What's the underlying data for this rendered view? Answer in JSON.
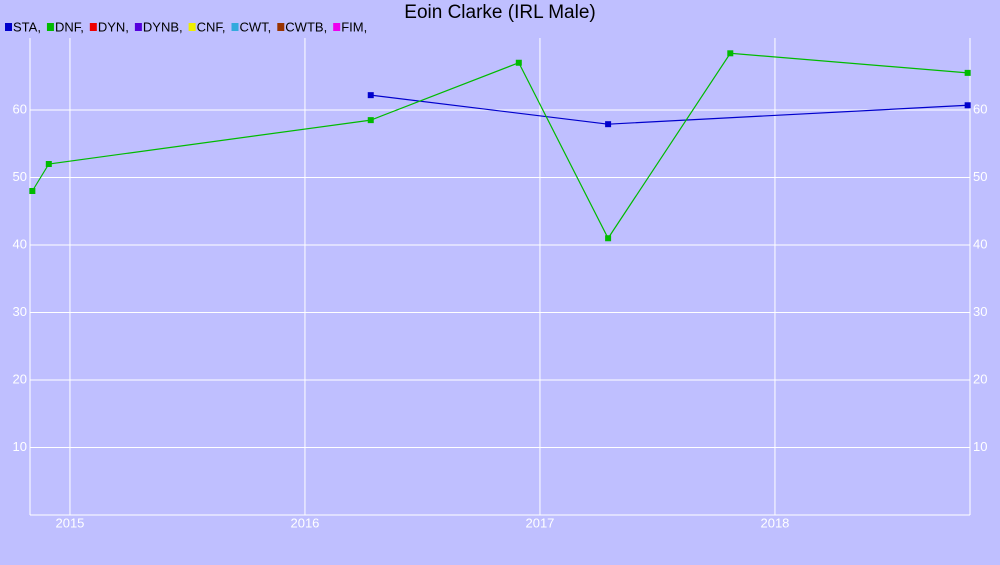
{
  "chart_data": {
    "type": "line",
    "title": "Eoin Clarke (IRL Male)",
    "series": [
      {
        "name": "STA,",
        "color": "#0000cc",
        "x": [
          2016.28,
          2017.29,
          2018.82
        ],
        "values": [
          62.2,
          57.9,
          60.7
        ]
      },
      {
        "name": "DNF,",
        "color": "#00bb00",
        "x": [
          2014.84,
          2014.91,
          2016.28,
          2016.91,
          2017.29,
          2017.81,
          2018.82
        ],
        "values": [
          48.0,
          52.0,
          58.5,
          67.0,
          41.0,
          68.4,
          65.5
        ]
      },
      {
        "name": "DYN,",
        "color": "#ee0000",
        "x": [],
        "values": []
      },
      {
        "name": "DYNB,",
        "color": "#5500dd",
        "x": [],
        "values": []
      },
      {
        "name": "CNF,",
        "color": "#eeee00",
        "x": [],
        "values": []
      },
      {
        "name": "CWT,",
        "color": "#33aadd",
        "x": [],
        "values": []
      },
      {
        "name": "CWTB,",
        "color": "#993300",
        "x": [],
        "values": []
      },
      {
        "name": "FIM,",
        "color": "#ee00ee",
        "x": [],
        "values": []
      }
    ],
    "xlim": [
      2014.83,
      2018.83
    ],
    "xticks": [
      2015,
      2016,
      2017,
      2018
    ],
    "ylim": [
      0,
      70
    ],
    "yticks": [
      10,
      20,
      30,
      40,
      50,
      60
    ],
    "grid": true
  }
}
